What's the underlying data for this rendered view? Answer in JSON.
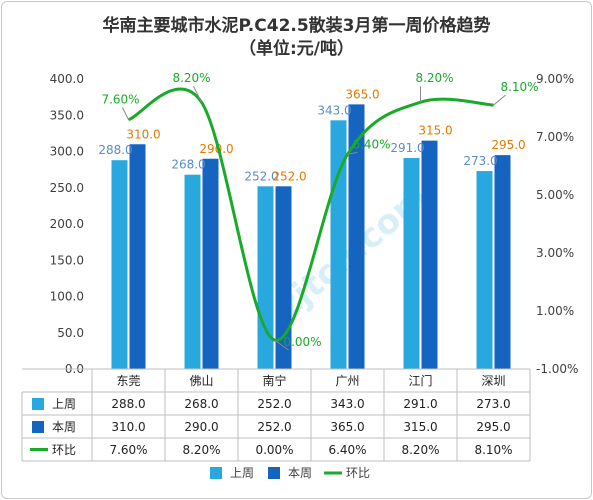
{
  "chart_data": {
    "type": "bar",
    "title": "华南主要城市水泥P.C42.5散装3月第一周价格趋势",
    "subtitle": "（单位:元/吨）",
    "categories": [
      "东莞",
      "佛山",
      "南宁",
      "广州",
      "江门",
      "深圳"
    ],
    "series": [
      {
        "name": "上周",
        "type": "bar",
        "values": [
          288.0,
          268.0,
          252.0,
          343.0,
          291.0,
          273.0
        ],
        "color": "#29a8e0",
        "label_color": "#5b8dc9"
      },
      {
        "name": "本周",
        "type": "bar",
        "values": [
          310.0,
          290.0,
          252.0,
          365.0,
          315.0,
          295.0
        ],
        "color": "#1565c0",
        "label_color": "#e07b00"
      },
      {
        "name": "环比",
        "type": "line",
        "axis": "right",
        "values": [
          7.6,
          8.2,
          0.0,
          6.4,
          8.2,
          8.1
        ],
        "unit": "%",
        "color": "#1aaa2a"
      }
    ],
    "y_left": {
      "ylim": [
        0,
        400
      ],
      "ticks": [
        "0.0",
        "50.0",
        "100.0",
        "150.0",
        "200.0",
        "250.0",
        "300.0",
        "350.0",
        "400.0"
      ]
    },
    "y_right": {
      "ylim": [
        -1,
        9
      ],
      "ticks": [
        "-1.00%",
        "1.00%",
        "3.00%",
        "5.00%",
        "7.00%",
        "9.00%"
      ]
    },
    "bar_labels": {
      "prev": [
        "288.0",
        "268.0",
        "252.0",
        "343.0",
        "291.0",
        "273.0"
      ],
      "curr": [
        "310.0",
        "290.0",
        "252.0",
        "365.0",
        "315.0",
        "295.0"
      ],
      "ratio": [
        "7.60%",
        "8.20%",
        "0.00%",
        "6.40%",
        "8.20%",
        "8.10%"
      ]
    },
    "table": {
      "rows": [
        {
          "key": "prev",
          "label": "上周",
          "cells": [
            "288.0",
            "268.0",
            "252.0",
            "343.0",
            "291.0",
            "273.0"
          ]
        },
        {
          "key": "curr",
          "label": "本周",
          "cells": [
            "310.0",
            "290.0",
            "252.0",
            "365.0",
            "315.0",
            "295.0"
          ]
        },
        {
          "key": "ratio",
          "label": "环比",
          "cells": [
            "7.60%",
            "8.20%",
            "0.00%",
            "6.40%",
            "8.20%",
            "8.10%"
          ]
        }
      ]
    },
    "legend": {
      "placement": "bottom",
      "items": [
        "上周",
        "本周",
        "环比"
      ]
    },
    "grid": false,
    "watermark": "zjtcn.com"
  }
}
